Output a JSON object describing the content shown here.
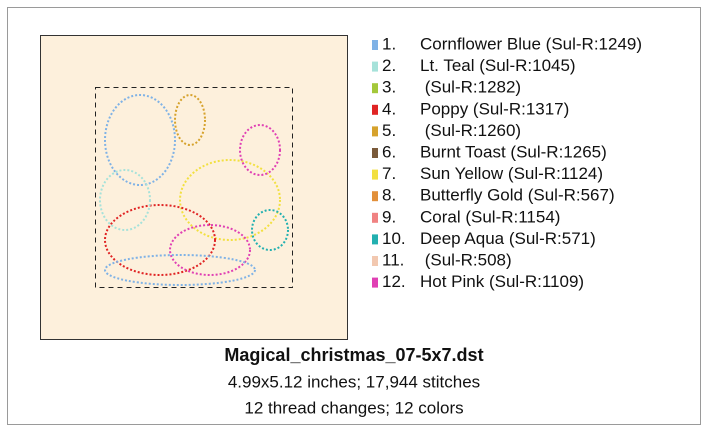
{
  "threads": [
    {
      "number": "1.",
      "name": "Cornflower Blue (Sul-R:1249)",
      "color": "#7fb2e6"
    },
    {
      "number": "2.",
      "name": "Lt. Teal (Sul-R:1045)",
      "color": "#a6e2da"
    },
    {
      "number": "3.",
      "name": " (Sul-R:1282)",
      "color": "#a4c83a"
    },
    {
      "number": "4.",
      "name": "Poppy (Sul-R:1317)",
      "color": "#e02424"
    },
    {
      "number": "5.",
      "name": " (Sul-R:1260)",
      "color": "#d6a22c"
    },
    {
      "number": "6.",
      "name": "Burnt Toast (Sul-R:1265)",
      "color": "#7a5a3a"
    },
    {
      "number": "7.",
      "name": "Sun Yellow (Sul-R:1124)",
      "color": "#f2e040"
    },
    {
      "number": "8.",
      "name": "Butterfly Gold (Sul-R:567)",
      "color": "#e2903a"
    },
    {
      "number": "9.",
      "name": "Coral (Sul-R:1154)",
      "color": "#f08282"
    },
    {
      "number": "10.",
      "name": "Deep Aqua (Sul-R:571)",
      "color": "#22b0b0"
    },
    {
      "number": "11.",
      "name": " (Sul-R:508)",
      "color": "#f2c8b0"
    },
    {
      "number": "12.",
      "name": "Hot Pink (Sul-R:1109)",
      "color": "#e040b4"
    }
  ],
  "file": {
    "name": "Magical_christmas_07-5x7.dst",
    "size_line": "4.99x5.12 inches; 17,944 stitches",
    "changes_line": "12 thread changes; 12 colors"
  }
}
